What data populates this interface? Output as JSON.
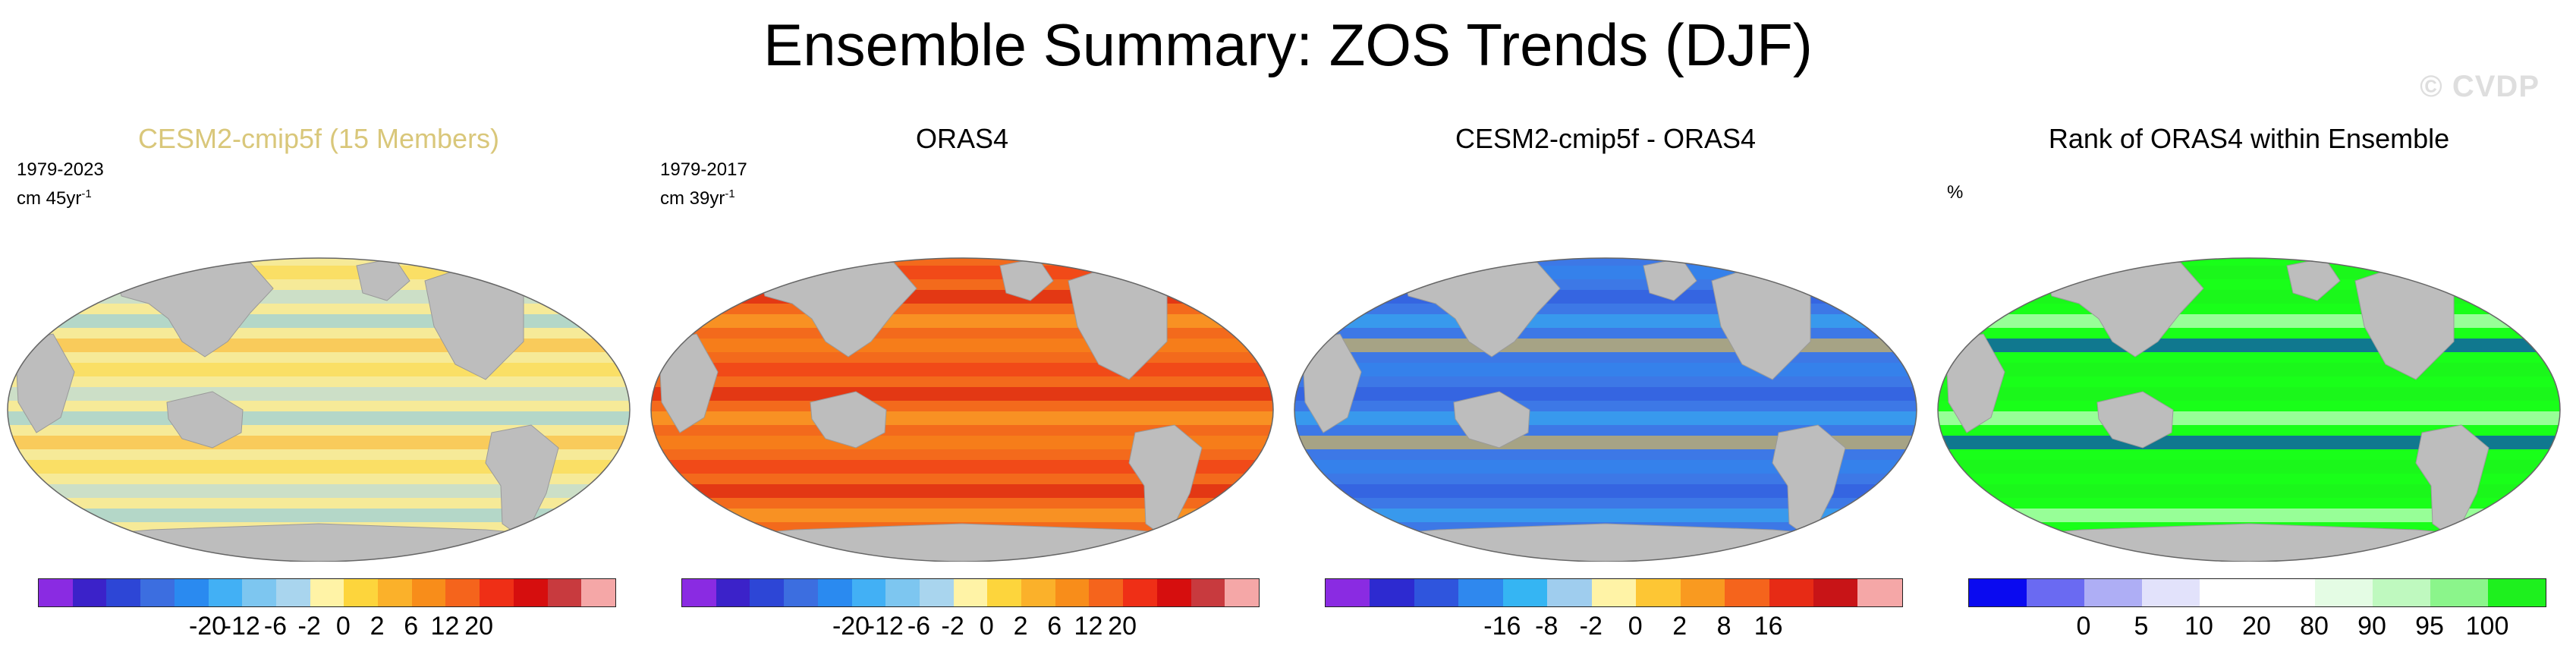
{
  "title": "Ensemble Summary: ZOS Trends (DJF)",
  "watermark": "© CVDP",
  "panels": [
    {
      "title": "CESM2-cmip5f (15 Members)",
      "title_color": "#d9c77a",
      "period": "1979-2023",
      "units_prefix": "cm 45yr",
      "units_exp": "-1",
      "ocean_base": "#f6ea98",
      "colorbar": {
        "colors": [
          "#8a2be2",
          "#3b22c9",
          "#2d46d6",
          "#3c6ee0",
          "#2a8af0",
          "#42b0f5",
          "#7dc6f0",
          "#a9d5ee",
          "#fff3a6",
          "#fdd53c",
          "#fbb12a",
          "#f88d1a",
          "#f5641c",
          "#ef2f16",
          "#d60e0e",
          "#c83a3e",
          "#f5a7a7"
        ],
        "ticks": [
          "-20",
          "-12",
          "-6",
          "-2",
          "0",
          "2",
          "6",
          "12",
          "20"
        ]
      }
    },
    {
      "title": "ORAS4",
      "title_color": "#000000",
      "period": "1979-2017",
      "units_prefix": "cm 39yr",
      "units_exp": "-1",
      "ocean_base": "#f36a1c",
      "colorbar": {
        "colors": [
          "#8a2be2",
          "#3b22c9",
          "#2d46d6",
          "#3c6ee0",
          "#2a8af0",
          "#42b0f5",
          "#7dc6f0",
          "#a9d5ee",
          "#fff3a6",
          "#fdd53c",
          "#fbb12a",
          "#f88d1a",
          "#f5641c",
          "#ef2f16",
          "#d60e0e",
          "#c83a3e",
          "#f5a7a7"
        ],
        "ticks": [
          "-20",
          "-12",
          "-6",
          "-2",
          "0",
          "2",
          "6",
          "12",
          "20"
        ]
      }
    },
    {
      "title": "CESM2-cmip5f - ORAS4",
      "title_color": "#000000",
      "period": "",
      "units_prefix": "",
      "units_exp": "",
      "ocean_base": "#3d78e6",
      "colorbar": {
        "colors": [
          "#8a2be2",
          "#2d2ad0",
          "#2f55dd",
          "#2f88ee",
          "#35b5f3",
          "#9fcdee",
          "#fff3a6",
          "#fdc634",
          "#f99a20",
          "#f5641c",
          "#e72b15",
          "#c81417",
          "#f5a7a7"
        ],
        "ticks": [
          "-16",
          "-8",
          "-2",
          "0",
          "2",
          "8",
          "16"
        ]
      }
    },
    {
      "title": "Rank of ORAS4 within Ensemble",
      "title_color": "#000000",
      "period": "%",
      "units_prefix": "",
      "units_exp": "",
      "ocean_base": "#19ff19",
      "colorbar": {
        "colors": [
          "#0a0af0",
          "#6a6af2",
          "#aeaef5",
          "#e2e2fb",
          "#ffffff",
          "#ffffff",
          "#e4fce4",
          "#bff9bf",
          "#8bf58b",
          "#1ef01e"
        ],
        "ticks": [
          "0",
          "5",
          "10",
          "20",
          "80",
          "90",
          "95",
          "100"
        ]
      }
    }
  ]
}
